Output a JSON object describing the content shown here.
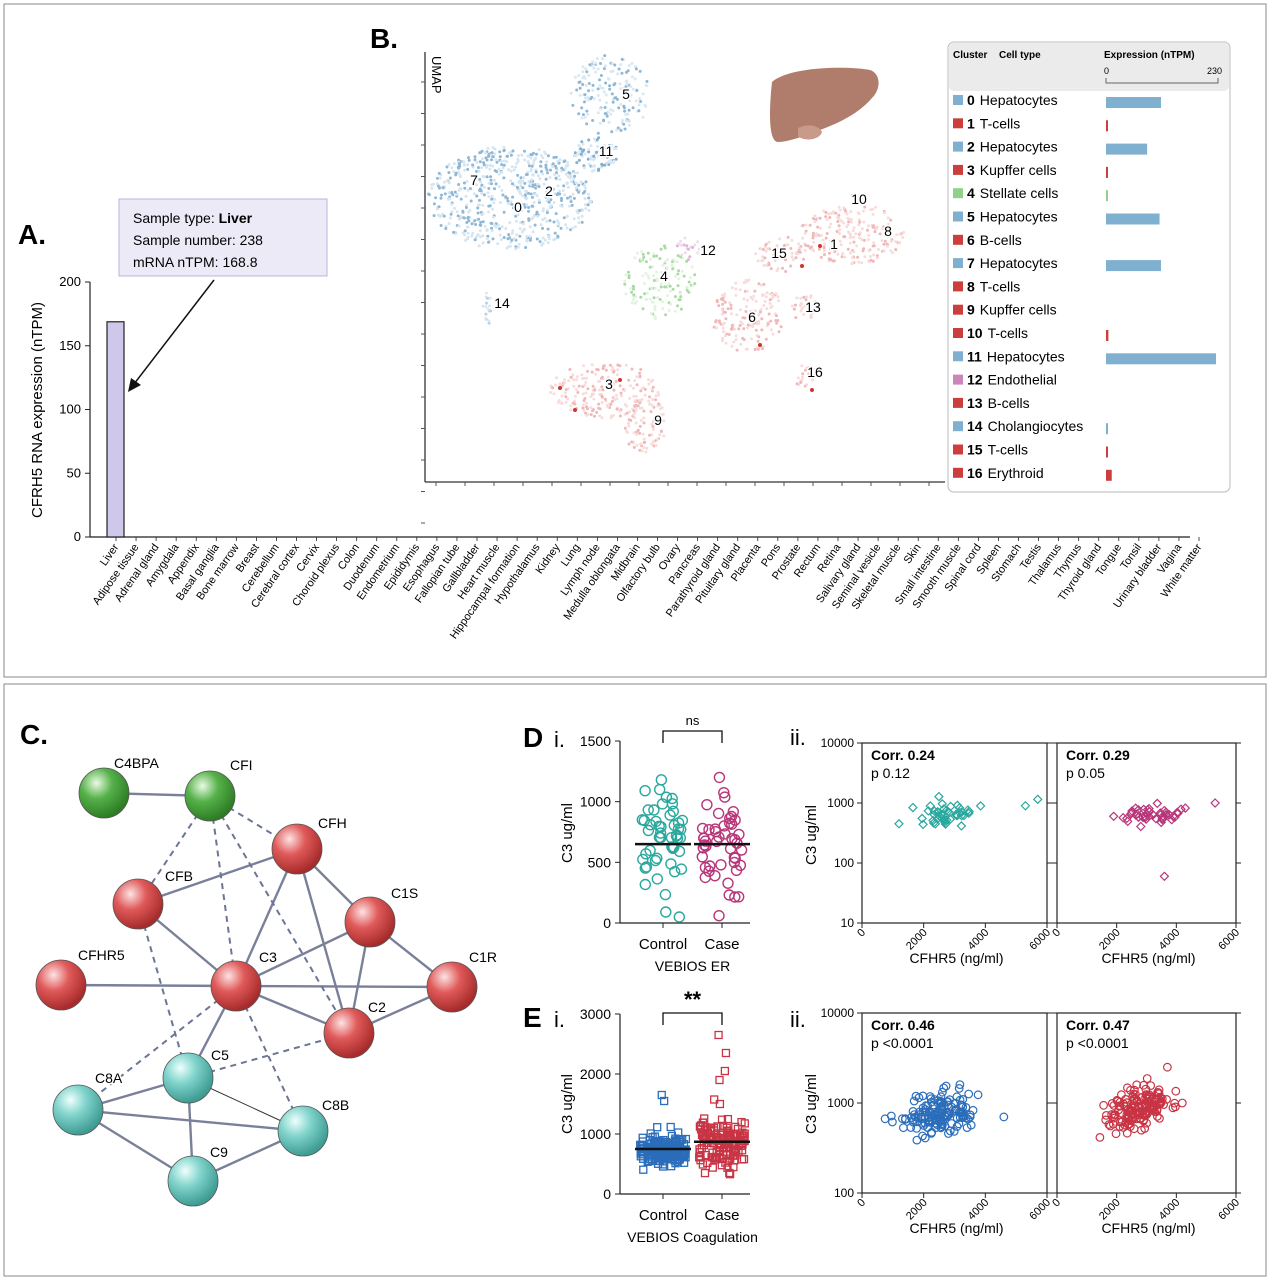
{
  "panelA": {
    "letter": "A.",
    "tooltip": {
      "k1": "Sample type: ",
      "v1": "Liver",
      "l2": "Sample number: 238",
      "l3": "mRNA nTPM: 168.8"
    },
    "ylabel": "CFRH5 RNA expression (nTPM)",
    "yticks": [
      0,
      50,
      100,
      150,
      200
    ],
    "ylim": [
      0,
      200
    ],
    "bar_value": 168.8,
    "tissues": [
      "Liver",
      "Adipose tissue",
      "Adrenal gland",
      "Amygdala",
      "Appendix",
      "Basal ganglia",
      "Bone marrow",
      "Breast",
      "Cerebellum",
      "Cerebral cortex",
      "Cervix",
      "Choroid plexus",
      "Colon",
      "Duodenum",
      "Endometrium",
      "Epididymis",
      "Esophagus",
      "Fallopian tube",
      "Gallbladder",
      "Heart muscle",
      "Hippocampal formation",
      "Hypothalamus",
      "Kidney",
      "Lung",
      "Lymph node",
      "Medulla oblongata",
      "Midbrain",
      "Olfactory bulb",
      "Ovary",
      "Pancreas",
      "Parathyroid gland",
      "Pituitary gland",
      "Placenta",
      "Pons",
      "Prostate",
      "Rectum",
      "Retina",
      "Salivary gland",
      "Seminal vesicle",
      "Skeletal muscle",
      "Skin",
      "Small intestine",
      "Smooth muscle",
      "Spinal cord",
      "Spleen",
      "Stomach",
      "Testis",
      "Thalamus",
      "Thymus",
      "Thyroid gland",
      "Tongue",
      "Tonsil",
      "Urinary bladder",
      "Vagina",
      "White matter"
    ]
  },
  "panelB": {
    "letter": "B.",
    "axis_label": "UMAP",
    "legend": {
      "h_cluster": "Cluster",
      "h_cell": "Cell type",
      "h_expr": "Expression (nTPM)",
      "scale_min": "0",
      "scale_max": "230",
      "max": 230,
      "rows": [
        {
          "id": "0",
          "type": "Hepatocytes",
          "color": "#7fb0cf",
          "v": 115
        },
        {
          "id": "1",
          "type": "T-cells",
          "color": "#cc3e3e",
          "v": 3
        },
        {
          "id": "2",
          "type": "Hepatocytes",
          "color": "#7fb0cf",
          "v": 86
        },
        {
          "id": "3",
          "type": "Kupffer cells",
          "color": "#cc3e3e",
          "v": 4
        },
        {
          "id": "4",
          "type": "Stellate cells",
          "color": "#8fd08a",
          "v": 2
        },
        {
          "id": "5",
          "type": "Hepatocytes",
          "color": "#7fb0cf",
          "v": 112
        },
        {
          "id": "6",
          "type": "B-cells",
          "color": "#cc3e3e",
          "v": 0
        },
        {
          "id": "7",
          "type": "Hepatocytes",
          "color": "#7fb0cf",
          "v": 115
        },
        {
          "id": "8",
          "type": "T-cells",
          "color": "#cc3e3e",
          "v": 0
        },
        {
          "id": "9",
          "type": "Kupffer cells",
          "color": "#cc3e3e",
          "v": 0
        },
        {
          "id": "10",
          "type": "T-cells",
          "color": "#cc3e3e",
          "v": 5
        },
        {
          "id": "11",
          "type": "Hepatocytes",
          "color": "#7fb0cf",
          "v": 230
        },
        {
          "id": "12",
          "type": "Endothelial",
          "color": "#c987bb",
          "v": 0
        },
        {
          "id": "13",
          "type": "B-cells",
          "color": "#cc3e3e",
          "v": 0
        },
        {
          "id": "14",
          "type": "Cholangiocytes",
          "color": "#7fb0cf",
          "v": 2
        },
        {
          "id": "15",
          "type": "T-cells",
          "color": "#cc3e3e",
          "v": 3
        },
        {
          "id": "16",
          "type": "Erythroid",
          "color": "#cc3e3e",
          "v": 12
        }
      ]
    },
    "cluster_labels": [
      "0",
      "1",
      "2",
      "3",
      "4",
      "5",
      "6",
      "7",
      "8",
      "9",
      "10",
      "11",
      "12",
      "13",
      "14",
      "15",
      "16"
    ]
  },
  "panelC": {
    "letter": "C.",
    "nodes": [
      "C4BPA",
      "CFI",
      "CFH",
      "CFB",
      "C1S",
      "CFHR5",
      "C3",
      "C1R",
      "C2",
      "C5",
      "C8A",
      "C8B",
      "C9"
    ]
  },
  "panelD": {
    "letter": "D",
    "sub_i": "i.",
    "sub_ii": "ii.",
    "ylabel": "C3 ug/ml",
    "yticks": [
      "0",
      "500",
      "1000",
      "1500"
    ],
    "groups": [
      "Control",
      "Case"
    ],
    "group_label": "VEBIOS ER",
    "sig": "ns",
    "scatter_ylabel": "C3 ug/ml",
    "scatter_yticks": [
      "10",
      "100",
      "1000",
      "10000"
    ],
    "scatter_xticks": [
      "0",
      "2000",
      "4000",
      "6000"
    ],
    "scatter_xlabel": "CFHR5 (ng/ml)",
    "corr_left": "Corr. 0.24",
    "p_left": "p 0.12",
    "corr_right": "Corr. 0.29",
    "p_right": "p 0.05"
  },
  "panelE": {
    "letter": "E",
    "sub_i": "i.",
    "sub_ii": "ii.",
    "ylabel": "C3 ug/ml",
    "yticks": [
      "0",
      "1000",
      "2000",
      "3000"
    ],
    "groups": [
      "Control",
      "Case"
    ],
    "group_label": "VEBIOS Coagulation",
    "sig": "**",
    "scatter_ylabel": "C3 ug/ml",
    "scatter_yticks": [
      "100",
      "1000",
      "10000"
    ],
    "scatter_xticks": [
      "0",
      "2000",
      "4000",
      "6000"
    ],
    "scatter_xlabel": "CFHR5 (ng/ml)",
    "corr_left": "Corr. 0.46",
    "p_left": "p <0.0001",
    "corr_right": "Corr. 0.47",
    "p_right": "p <0.0001"
  },
  "chart_data": [
    {
      "type": "bar",
      "ylabel": "CFRH5 RNA expression (nTPM)",
      "ylim": [
        0,
        200
      ],
      "categories": [
        "Liver"
      ],
      "values": [
        168.8
      ]
    },
    {
      "type": "scatter",
      "ylabel": "C3 ug/ml",
      "categories": [
        "Control",
        "Case"
      ],
      "medians": [
        650,
        650
      ],
      "ylim": [
        0,
        1500
      ]
    },
    {
      "type": "scatter",
      "ylabel": "C3 ug/ml",
      "categories": [
        "Control",
        "Case"
      ],
      "medians": [
        750,
        870
      ],
      "ylim": [
        0,
        3000
      ]
    },
    {
      "type": "scatter",
      "ylabel": "C3 ug/ml",
      "xlabel": "CFHR5 (ng/ml)",
      "xlim": [
        0,
        6000
      ],
      "ylim": [
        10,
        10000
      ],
      "scale": "log-y"
    },
    {
      "type": "scatter",
      "ylabel": "C3 ug/ml",
      "xlabel": "CFHR5 (ng/ml)",
      "xlim": [
        0,
        6000
      ],
      "ylim": [
        100,
        10000
      ],
      "scale": "log-y"
    }
  ]
}
